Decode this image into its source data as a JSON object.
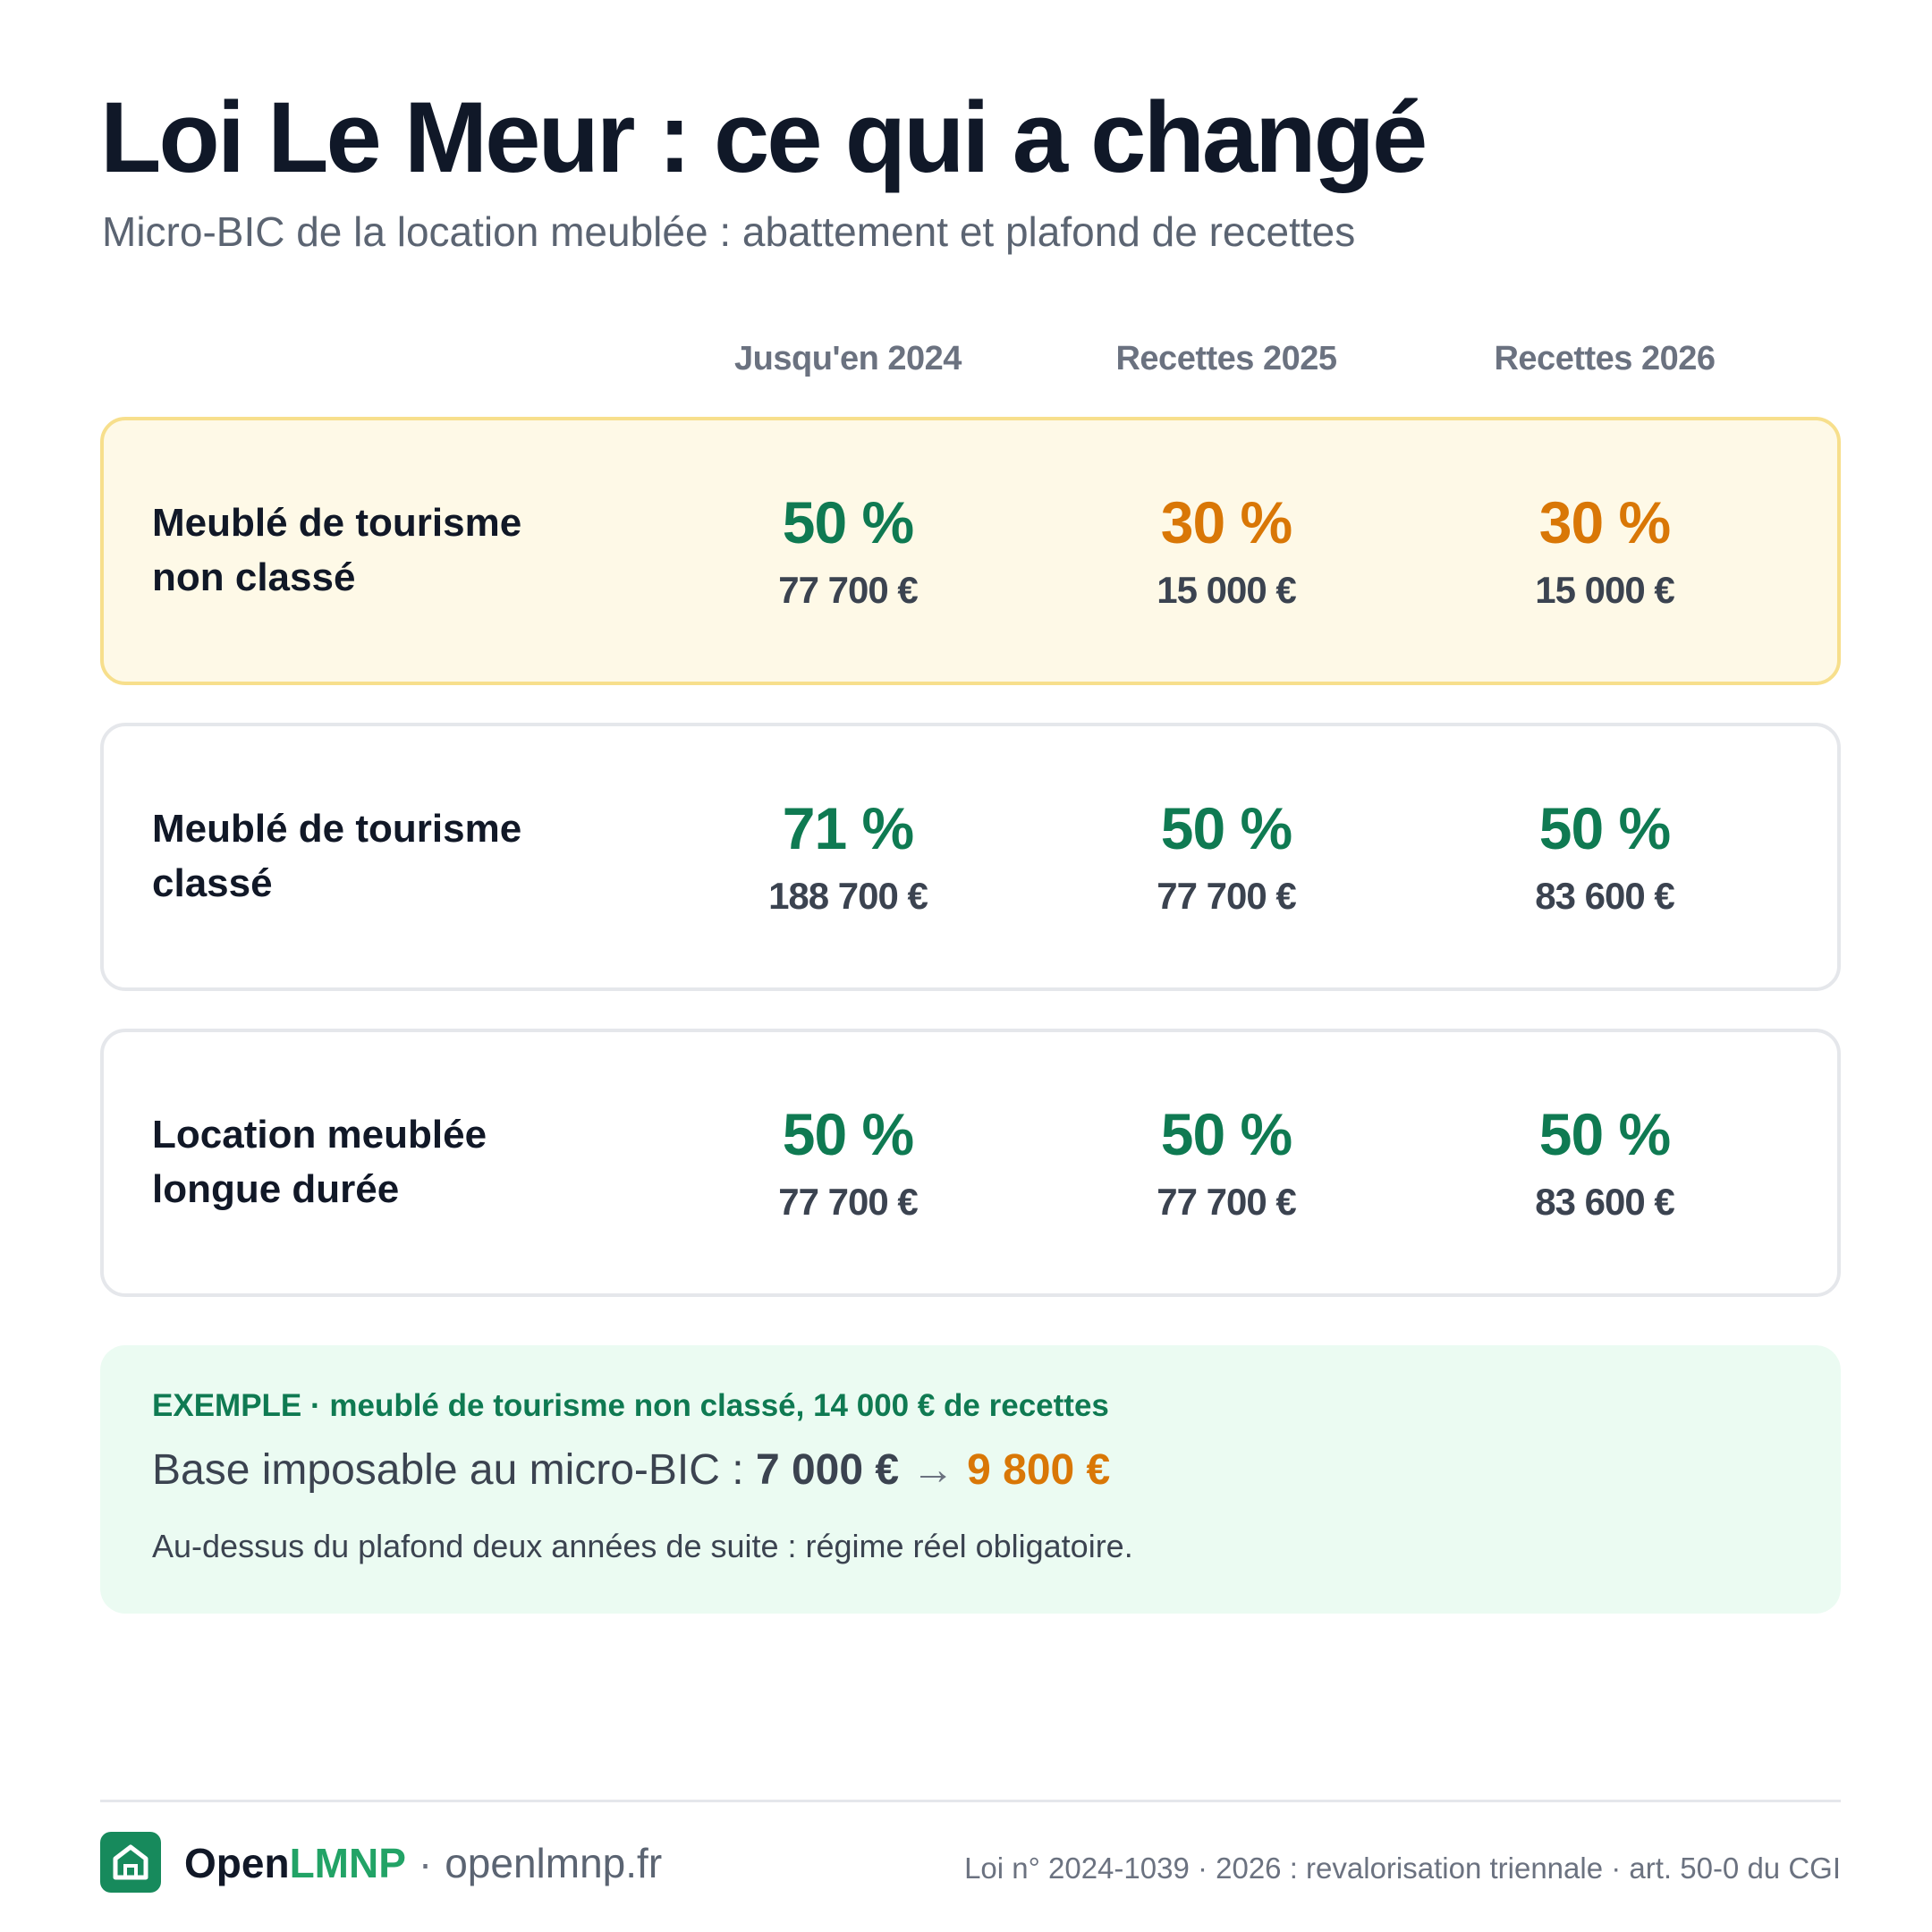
{
  "header": {
    "title": "Loi Le Meur : ce qui a changé",
    "subtitle": "Micro-BIC de la location meublée : abattement et plafond de recettes"
  },
  "columns": [
    "Jusqu'en 2024",
    "Recettes 2025",
    "Recettes 2026"
  ],
  "rows": [
    {
      "label_line1": "Meublé de tourisme",
      "label_line2": "non classé",
      "cells": [
        {
          "rate": "50 %",
          "ceiling": "77 700 €"
        },
        {
          "rate": "30 %",
          "ceiling": "15 000 €"
        },
        {
          "rate": "30 %",
          "ceiling": "15 000 €"
        }
      ]
    },
    {
      "label_line1": "Meublé de tourisme",
      "label_line2": "classé",
      "cells": [
        {
          "rate": "71 %",
          "ceiling": "188 700 €"
        },
        {
          "rate": "50 %",
          "ceiling": "77 700 €"
        },
        {
          "rate": "50 %",
          "ceiling": "83 600 €"
        }
      ]
    },
    {
      "label_line1": "Location meublée",
      "label_line2": "longue durée",
      "cells": [
        {
          "rate": "50 %",
          "ceiling": "77 700 €"
        },
        {
          "rate": "50 %",
          "ceiling": "77 700 €"
        },
        {
          "rate": "50 %",
          "ceiling": "83 600 €"
        }
      ]
    }
  ],
  "example": {
    "heading": "EXEMPLE · meublé de tourisme non classé, 14 000 € de recettes",
    "base_label": "Base imposable au micro-BIC :",
    "old_value": "7 000 €",
    "arrow": "→",
    "new_value": "9 800 €",
    "note": "Au-dessus du plafond deux années de suite : régime réel obligatoire."
  },
  "footer": {
    "brand_open": "Open",
    "brand_lmnp": "LMNP",
    "separator": "·",
    "url": "openlmnp.fr",
    "legal": "Loi n° 2024-1039 · 2026 : revalorisation triennale · art. 50-0 du CGI",
    "logo_icon": "house-icon"
  },
  "colors": {
    "green": "#0f7a52",
    "orange": "#d97706",
    "highlight_bg": "#fef9e7",
    "example_bg": "#ebfbf2"
  }
}
